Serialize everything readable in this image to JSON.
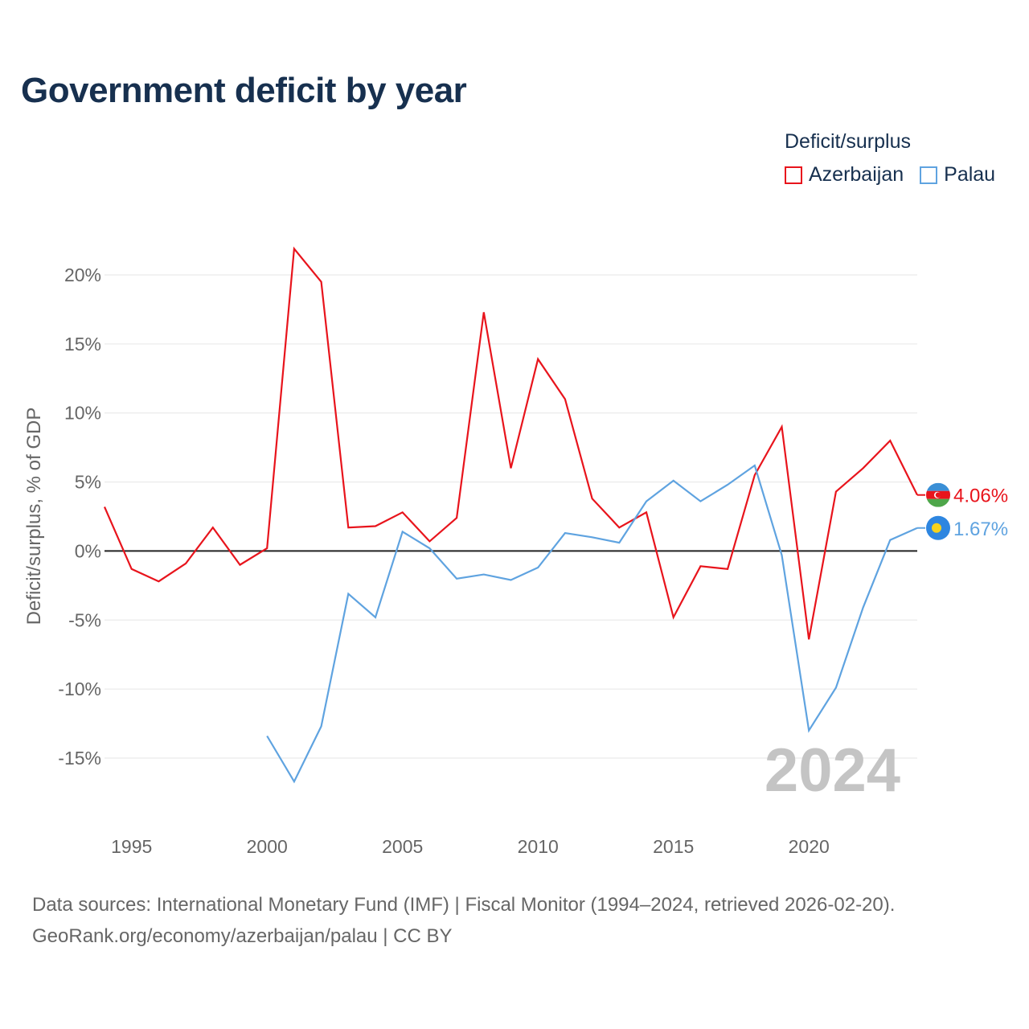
{
  "title": "Government deficit by year",
  "legend": {
    "title": "Deficit/surplus",
    "items": [
      {
        "name": "Azerbaijan",
        "color": "#e8141c"
      },
      {
        "name": "Palau",
        "color": "#5fa3e0"
      }
    ]
  },
  "source": {
    "line1": "Data sources: International Monetary Fund (IMF) | Fiscal Monitor (1994–2024, retrieved 2026-02-20).",
    "line2": "GeoRank.org/economy/azerbaijan/palau | CC BY"
  },
  "chart_data": {
    "type": "line",
    "title": "Government deficit by year",
    "xlabel": "",
    "ylabel": "Deficit/surplus, % of GDP",
    "year_label": "2024",
    "xlim": [
      1994,
      2024
    ],
    "ylim": [
      -19,
      22.5
    ],
    "x_ticks": [
      1995,
      2000,
      2005,
      2010,
      2015,
      2020
    ],
    "y_ticks": [
      {
        "value": 20,
        "label": "20%"
      },
      {
        "value": 15,
        "label": "15%"
      },
      {
        "value": 10,
        "label": "10%"
      },
      {
        "value": 5,
        "label": "5%"
      },
      {
        "value": 0,
        "label": "0%"
      },
      {
        "value": -5,
        "label": "-5%"
      },
      {
        "value": -10,
        "label": "-10%"
      },
      {
        "value": -15,
        "label": "-15%"
      }
    ],
    "series": [
      {
        "name": "Azerbaijan",
        "color": "#e8141c",
        "end_label": "4.06%",
        "x": [
          1994,
          1995,
          1996,
          1997,
          1998,
          1999,
          2000,
          2001,
          2002,
          2003,
          2004,
          2005,
          2006,
          2007,
          2008,
          2009,
          2010,
          2011,
          2012,
          2013,
          2014,
          2015,
          2016,
          2017,
          2018,
          2019,
          2020,
          2021,
          2022,
          2023,
          2024
        ],
        "values": [
          3.2,
          -1.3,
          -2.2,
          -0.9,
          1.7,
          -1.0,
          0.2,
          21.9,
          19.5,
          1.7,
          1.8,
          2.8,
          0.7,
          2.4,
          17.3,
          6.0,
          13.9,
          11.0,
          3.8,
          1.7,
          2.8,
          -4.8,
          -1.1,
          -1.3,
          5.5,
          9.0,
          -6.4,
          4.3,
          6.0,
          8.0,
          4.06
        ]
      },
      {
        "name": "Palau",
        "color": "#5fa3e0",
        "end_label": "1.67%",
        "x": [
          2000,
          2001,
          2002,
          2003,
          2004,
          2005,
          2006,
          2007,
          2008,
          2009,
          2010,
          2011,
          2012,
          2013,
          2014,
          2015,
          2016,
          2017,
          2018,
          2019,
          2020,
          2021,
          2022,
          2023,
          2024
        ],
        "values": [
          -13.4,
          -16.7,
          -12.7,
          -3.1,
          -4.8,
          1.4,
          0.2,
          -2.0,
          -1.7,
          -2.1,
          -1.2,
          1.3,
          1.0,
          0.6,
          3.6,
          5.1,
          3.6,
          4.8,
          6.2,
          -0.3,
          -13.0,
          -9.9,
          -4.1,
          0.8,
          1.67
        ]
      }
    ]
  }
}
